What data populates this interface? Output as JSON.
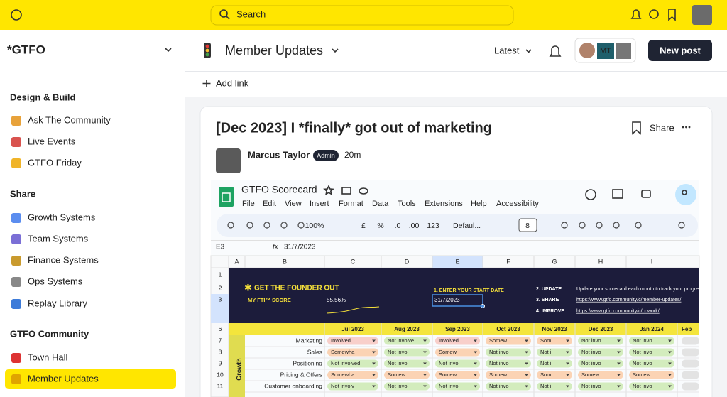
{
  "topbar": {
    "search": "Search"
  },
  "sidebar": {
    "title": "*GTFO",
    "sections": [
      {
        "heading": "Design & Build",
        "items": [
          "Ask The Community",
          "Live Events",
          "GTFO Friday"
        ]
      },
      {
        "heading": "Share",
        "items": [
          "Growth Systems",
          "Team Systems",
          "Finance Systems",
          "Ops Systems",
          "Replay Library"
        ]
      },
      {
        "heading": "GTFO Community",
        "items": [
          "Town Hall",
          "Member Updates"
        ]
      }
    ]
  },
  "header": {
    "title": "Member Updates",
    "sort": "Latest",
    "avatar_initials": "MT",
    "button": "New post",
    "add_link": "Add link"
  },
  "post": {
    "title": "[Dec 2023] I *finally* got out of marketing",
    "share": "Share",
    "author": "Marcus Taylor",
    "badge": "Admin",
    "time": "20m",
    "sheet": {
      "title": "GTFO Scorecard",
      "menu": [
        "File",
        "Edit",
        "View",
        "Insert",
        "Format",
        "Data",
        "Tools",
        "Extensions",
        "Help",
        "Accessibility"
      ],
      "toolbar": [
        "100%",
        "£",
        "%",
        ".0",
        ".00",
        "123",
        "Defaul...",
        "8"
      ],
      "cell_ref": "E3",
      "formula": "31/7/2023",
      "columns": [
        "A",
        "B",
        "C",
        "D",
        "E",
        "F",
        "G",
        "H",
        "I"
      ],
      "row_numbers": [
        "1",
        "2",
        "3",
        "6",
        "7",
        "8",
        "9",
        "10",
        "11"
      ],
      "banner": {
        "heading": "GET THE FOUNDER OUT",
        "score_label": "MY FTI™ SCORE",
        "score": "55.56%",
        "start_label": "1. ENTER YOUR START DATE",
        "start_date": "31/7/2023",
        "steps": [
          "2. UPDATE",
          "3. SHARE",
          "4. IMPROVE"
        ],
        "step_texts": [
          "Update your scorecard each month to track your progre",
          "https://www.gtfo.community/c/member-updates/",
          "https://www.gtfo.community/c/cowork/"
        ]
      },
      "months": [
        "Jul 2023",
        "Aug 2023",
        "Sep 2023",
        "Oct 2023",
        "Nov 2023",
        "Dec 2023",
        "Jan 2024",
        "Feb"
      ],
      "group": "Growth",
      "rows": [
        {
          "label": "Marketing",
          "cells": [
            {
              "text": "Involved",
              "color": "#f8cfca"
            },
            {
              "text": "Not involve",
              "color": "#d3ecbd"
            },
            {
              "text": "Involved",
              "color": "#f8cfca"
            },
            {
              "text": "Somew",
              "color": "#fbd3b4"
            },
            {
              "text": "Som",
              "color": "#fbd3b4"
            },
            {
              "text": "Not invo",
              "color": "#d3ecbd"
            },
            {
              "text": "Not invo",
              "color": "#d3ecbd"
            }
          ]
        },
        {
          "label": "Sales",
          "cells": [
            {
              "text": "Somewha",
              "color": "#fbd3b4"
            },
            {
              "text": "Not invo",
              "color": "#d3ecbd"
            },
            {
              "text": "Somew",
              "color": "#fbd3b4"
            },
            {
              "text": "Not invo",
              "color": "#d3ecbd"
            },
            {
              "text": "Not i",
              "color": "#d3ecbd"
            },
            {
              "text": "Not invo",
              "color": "#d3ecbd"
            },
            {
              "text": "Not invo",
              "color": "#d3ecbd"
            }
          ]
        },
        {
          "label": "Positioning",
          "cells": [
            {
              "text": "Not involved",
              "color": "#d3ecbd"
            },
            {
              "text": "Not invo",
              "color": "#d3ecbd"
            },
            {
              "text": "Not invo",
              "color": "#d3ecbd"
            },
            {
              "text": "Not invo",
              "color": "#d3ecbd"
            },
            {
              "text": "Not i",
              "color": "#d3ecbd"
            },
            {
              "text": "Not invo",
              "color": "#d3ecbd"
            },
            {
              "text": "Not invo",
              "color": "#d3ecbd"
            }
          ]
        },
        {
          "label": "Pricing & Offers",
          "cells": [
            {
              "text": "Somewha",
              "color": "#fbd3b4"
            },
            {
              "text": "Somew",
              "color": "#fbd3b4"
            },
            {
              "text": "Somew",
              "color": "#fbd3b4"
            },
            {
              "text": "Somew",
              "color": "#fbd3b4"
            },
            {
              "text": "Som",
              "color": "#fbd3b4"
            },
            {
              "text": "Somew",
              "color": "#fbd3b4"
            },
            {
              "text": "Somew",
              "color": "#fbd3b4"
            }
          ]
        },
        {
          "label": "Customer onboarding",
          "cells": [
            {
              "text": "Not involv",
              "color": "#d3ecbd"
            },
            {
              "text": "Not invo",
              "color": "#d3ecbd"
            },
            {
              "text": "Not invo",
              "color": "#d3ecbd"
            },
            {
              "text": "Not invo",
              "color": "#d3ecbd"
            },
            {
              "text": "Not i",
              "color": "#d3ecbd"
            },
            {
              "text": "Not invo",
              "color": "#d3ecbd"
            },
            {
              "text": "Not invo",
              "color": "#d3ecbd"
            }
          ]
        }
      ]
    }
  }
}
